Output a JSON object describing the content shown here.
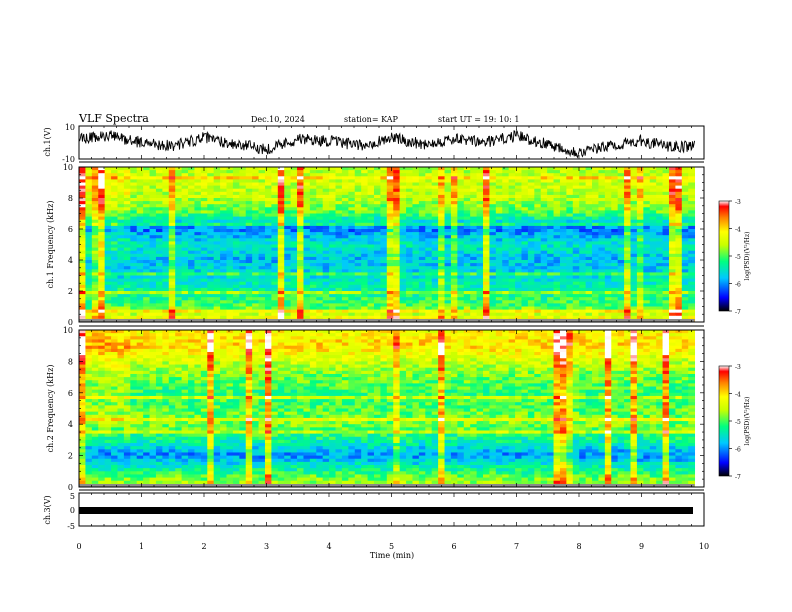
{
  "header": {
    "title": "VLF Spectra",
    "date": "Dec.10, 2024",
    "station": "station= KAP",
    "start": "start  UT  =   19: 10: 1"
  },
  "chart_data": [
    {
      "type": "line",
      "panel": "ch1-waveform",
      "ylabel": "ch.1(V)",
      "ylim": [
        -10,
        10
      ],
      "yticks": [
        "10",
        "-10"
      ],
      "xlim": [
        0,
        10
      ],
      "x_end": 9.85,
      "approx_profile": [
        {
          "x": 0.0,
          "y": 2
        },
        {
          "x": 0.5,
          "y": 4
        },
        {
          "x": 1.0,
          "y": 0
        },
        {
          "x": 1.5,
          "y": -2
        },
        {
          "x": 2.0,
          "y": 3
        },
        {
          "x": 2.5,
          "y": -1
        },
        {
          "x": 3.0,
          "y": -4
        },
        {
          "x": 3.5,
          "y": 2
        },
        {
          "x": 4.0,
          "y": 1
        },
        {
          "x": 4.5,
          "y": -2
        },
        {
          "x": 5.0,
          "y": 3
        },
        {
          "x": 5.5,
          "y": -1
        },
        {
          "x": 6.0,
          "y": 2
        },
        {
          "x": 6.5,
          "y": 0
        },
        {
          "x": 7.0,
          "y": 4
        },
        {
          "x": 7.5,
          "y": -1
        },
        {
          "x": 8.0,
          "y": -6
        },
        {
          "x": 8.5,
          "y": -2
        },
        {
          "x": 9.0,
          "y": 1
        },
        {
          "x": 9.5,
          "y": -3
        },
        {
          "x": 9.85,
          "y": -2
        }
      ]
    },
    {
      "type": "heatmap",
      "panel": "ch1-spectrogram",
      "ylabel": "ch.1  Frequency  (kHz)",
      "ylim": [
        0,
        10
      ],
      "yticks": [
        "0",
        "2",
        "4",
        "6",
        "8",
        "10"
      ],
      "xlim": [
        0,
        10
      ],
      "x_end": 9.85,
      "colorbar": {
        "label": "log(PSD)(V²/Hz)",
        "range": [
          -7,
          -3
        ],
        "ticks": [
          "-3",
          "-4",
          "-5",
          "-6",
          "-7"
        ]
      },
      "frequency_profile": [
        {
          "f": 0.0,
          "v": -4.0
        },
        {
          "f": 1.0,
          "v": -5.0
        },
        {
          "f": 2.0,
          "v": -5.3
        },
        {
          "f": 3.0,
          "v": -5.6
        },
        {
          "f": 4.0,
          "v": -5.8
        },
        {
          "f": 5.0,
          "v": -5.5
        },
        {
          "f": 6.0,
          "v": -6.1
        },
        {
          "f": 7.0,
          "v": -5.0
        },
        {
          "f": 8.0,
          "v": -4.6
        },
        {
          "f": 9.0,
          "v": -4.5
        },
        {
          "f": 10.0,
          "v": -4.6
        }
      ]
    },
    {
      "type": "heatmap",
      "panel": "ch2-spectrogram",
      "ylabel": "ch.2  Frequency  (kHz)",
      "ylim": [
        0,
        10
      ],
      "yticks": [
        "0",
        "2",
        "4",
        "6",
        "8",
        "10"
      ],
      "xlim": [
        0,
        10
      ],
      "x_end": 9.85,
      "colorbar": {
        "label": "log(PSD)(V²/Hz)",
        "range": [
          -7,
          -3
        ],
        "ticks": [
          "-3",
          "-4",
          "-5",
          "-6",
          "-7"
        ]
      },
      "frequency_profile": [
        {
          "f": 0.0,
          "v": -4.5
        },
        {
          "f": 1.0,
          "v": -5.2
        },
        {
          "f": 2.0,
          "v": -6.0
        },
        {
          "f": 3.0,
          "v": -5.3
        },
        {
          "f": 4.0,
          "v": -4.8
        },
        {
          "f": 5.0,
          "v": -5.0
        },
        {
          "f": 6.0,
          "v": -5.1
        },
        {
          "f": 7.0,
          "v": -4.9
        },
        {
          "f": 8.0,
          "v": -4.5
        },
        {
          "f": 9.0,
          "v": -4.0
        },
        {
          "f": 10.0,
          "v": -4.2
        }
      ]
    },
    {
      "type": "line",
      "panel": "ch3-waveform",
      "ylabel": "ch.3(V)",
      "ylim": [
        -5,
        5
      ],
      "yticks": [
        "5",
        "0",
        "-5"
      ],
      "xlim": [
        0,
        10
      ],
      "xlabel": "Time  (min)",
      "xticks": [
        "0",
        "1",
        "2",
        "3",
        "4",
        "5",
        "6",
        "7",
        "8",
        "9",
        "10"
      ],
      "constant_value": 0
    }
  ],
  "colors": {
    "waveform": "#000000",
    "colormap": [
      "#000000",
      "#0000ff",
      "#00c8ff",
      "#00ff80",
      "#c8ff00",
      "#ffff00",
      "#ff8000",
      "#ff0000",
      "#ffffff"
    ]
  }
}
